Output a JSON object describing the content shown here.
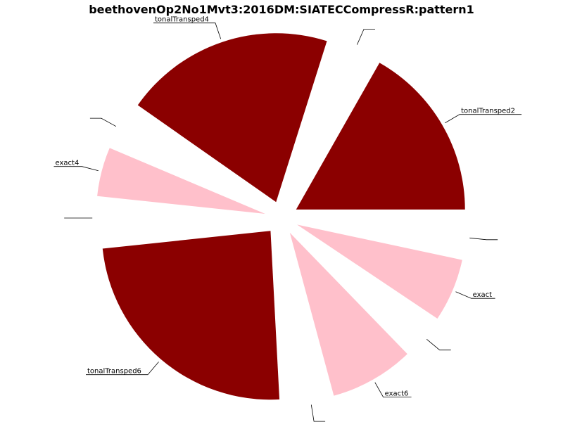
{
  "chart_data": {
    "type": "pie",
    "title": "beethovenOp2No1Mvt3:2016DM:SIATECCompressR:pattern1",
    "start_angle_deg": 0,
    "direction": "counterclockwise",
    "exploded": true,
    "legend": "none",
    "slices": [
      {
        "label": "tonalTransped2",
        "value": 2.5,
        "color": "#8b0000"
      },
      {
        "label": "",
        "value": 0.5,
        "color": "#ffffff"
      },
      {
        "label": "tonalTransped4",
        "value": 3.0,
        "color": "#8b0000"
      },
      {
        "label": "",
        "value": 0.5,
        "color": "#ffffff"
      },
      {
        "label": "exact4",
        "value": 0.7,
        "color": "#ffc0cb"
      },
      {
        "label": "",
        "value": 0.5,
        "color": "#ffffff"
      },
      {
        "label": "tonalTransped6",
        "value": 3.6,
        "color": "#8b0000"
      },
      {
        "label": "",
        "value": 0.5,
        "color": "#ffffff"
      },
      {
        "label": "exact6",
        "value": 1.2,
        "color": "#ffc0cb"
      },
      {
        "label": "",
        "value": 0.5,
        "color": "#ffffff"
      },
      {
        "label": "exact",
        "value": 0.9,
        "color": "#ffc0cb"
      },
      {
        "label": "",
        "value": 0.5,
        "color": "#ffffff"
      }
    ]
  }
}
